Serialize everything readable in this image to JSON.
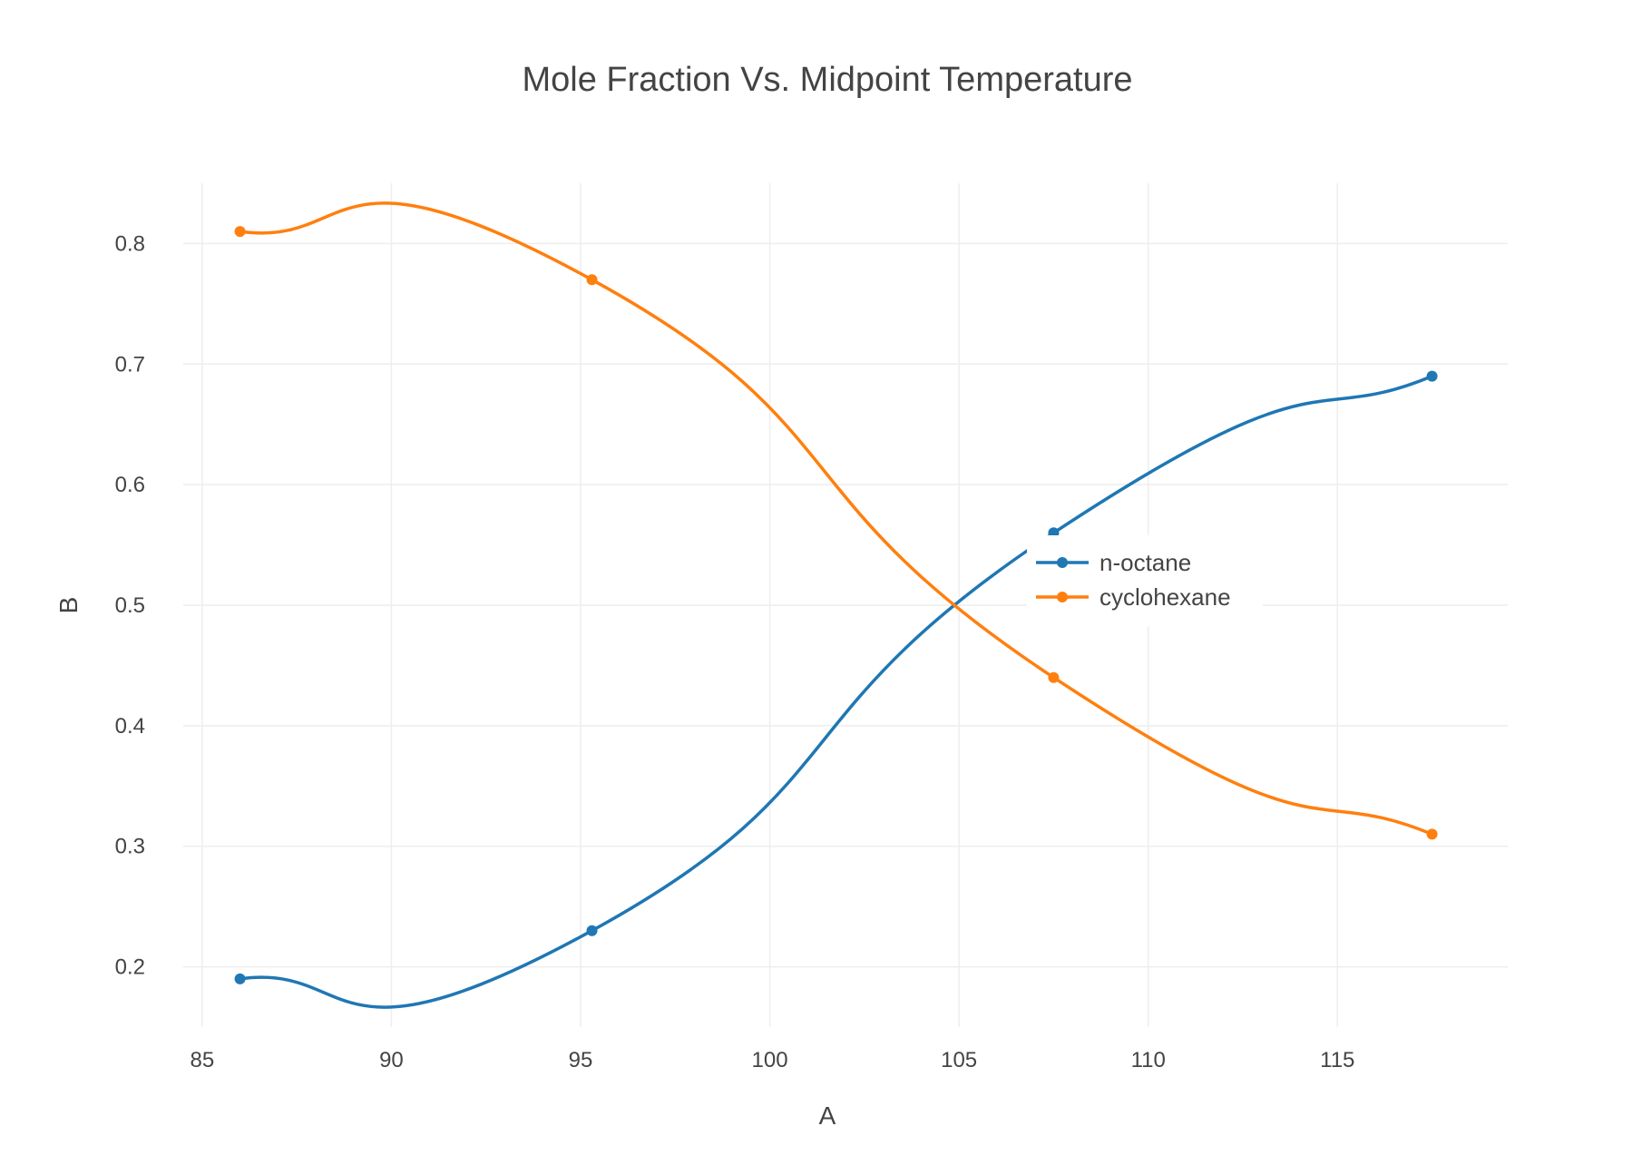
{
  "chart_data": {
    "type": "line",
    "title": "Mole Fraction Vs. Midpoint Temperature",
    "xlabel": "A",
    "ylabel": "B",
    "xlim": [
      84.5,
      119.5
    ],
    "ylim": [
      0.15,
      0.85
    ],
    "x_ticks": [
      85,
      90,
      95,
      100,
      105,
      110,
      115
    ],
    "y_ticks": [
      0.2,
      0.3,
      0.4,
      0.5,
      0.6,
      0.7,
      0.8
    ],
    "grid": true,
    "legend_position": "right",
    "line_shape": "spline",
    "series": [
      {
        "name": "n-octane",
        "color": "#1f77b4",
        "x": [
          86,
          95.3,
          107.5,
          117.5
        ],
        "y": [
          0.19,
          0.23,
          0.56,
          0.69
        ]
      },
      {
        "name": "cyclohexane",
        "color": "#ff7f0e",
        "x": [
          86,
          95.3,
          107.5,
          117.5
        ],
        "y": [
          0.81,
          0.77,
          0.44,
          0.31
        ]
      }
    ]
  }
}
